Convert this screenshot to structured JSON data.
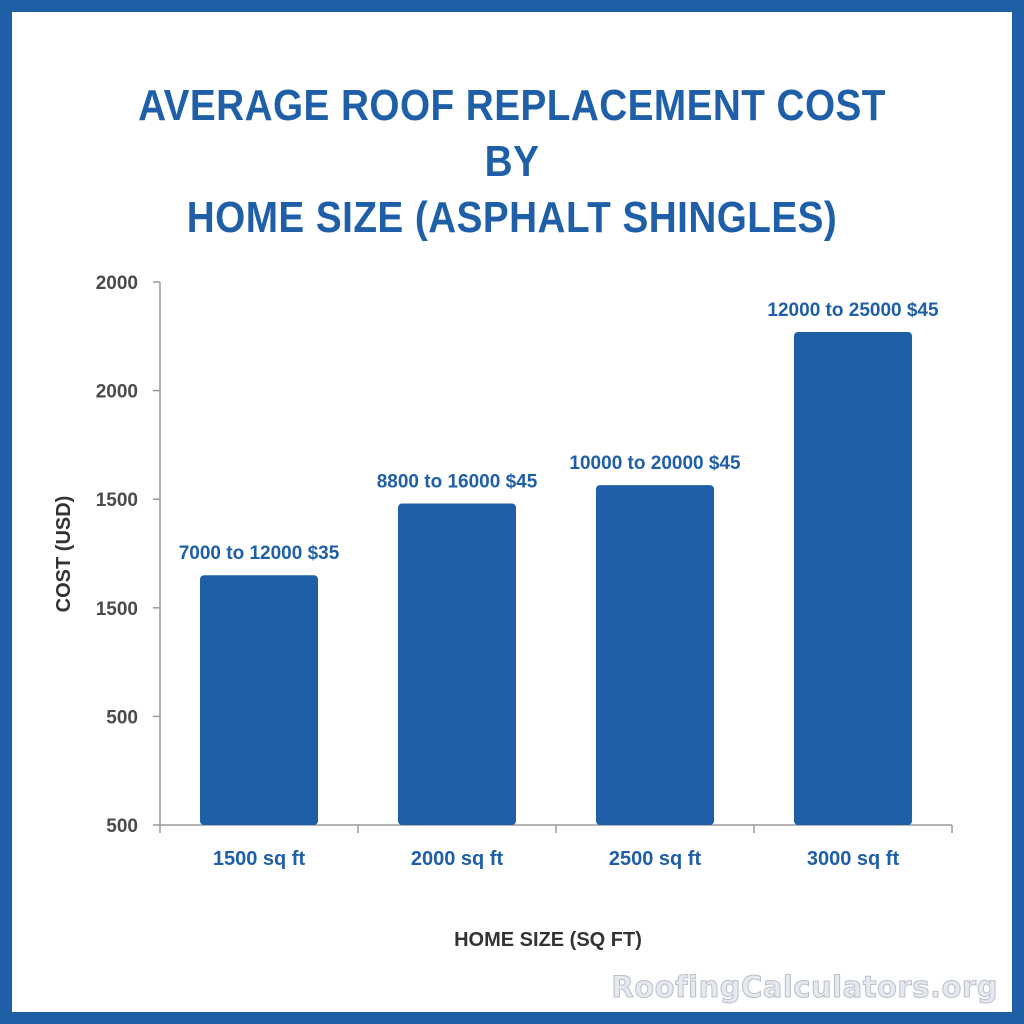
{
  "header": {
    "title_line1": "AVERAGE ROOF REPLACEMENT COST BY",
    "title_line2": "HOME SIZE (ASPHALT SHINGLES)"
  },
  "watermark": "RoofingCalculators.org",
  "colors": {
    "bar": "#1f5fa8",
    "frame": "#1f5fa8",
    "axis": "#9a9a9a"
  },
  "chart_data": {
    "type": "bar",
    "title": "AVERAGE ROOF REPLACEMENT COST BY HOME SIZE (ASPHALT SHINGLES)",
    "xlabel": "HOME SIZE (SQ FT)",
    "ylabel": "COST (USD)",
    "y_tick_labels": [
      "500",
      "500",
      "1500",
      "1500",
      "2000",
      "2000"
    ],
    "ylim": [
      0,
      5
    ],
    "categories": [
      "1500 sq ft",
      "2000 sq ft",
      "2500 sq ft",
      "3000 sq ft"
    ],
    "values": [
      2.3,
      2.96,
      3.13,
      4.54
    ],
    "data_labels": [
      "7000 to 12000 $35",
      "8800 to 16000 $45",
      "10000 to 20000 $45",
      "12000 to 25000 $45"
    ],
    "grid": false,
    "legend": "none"
  }
}
